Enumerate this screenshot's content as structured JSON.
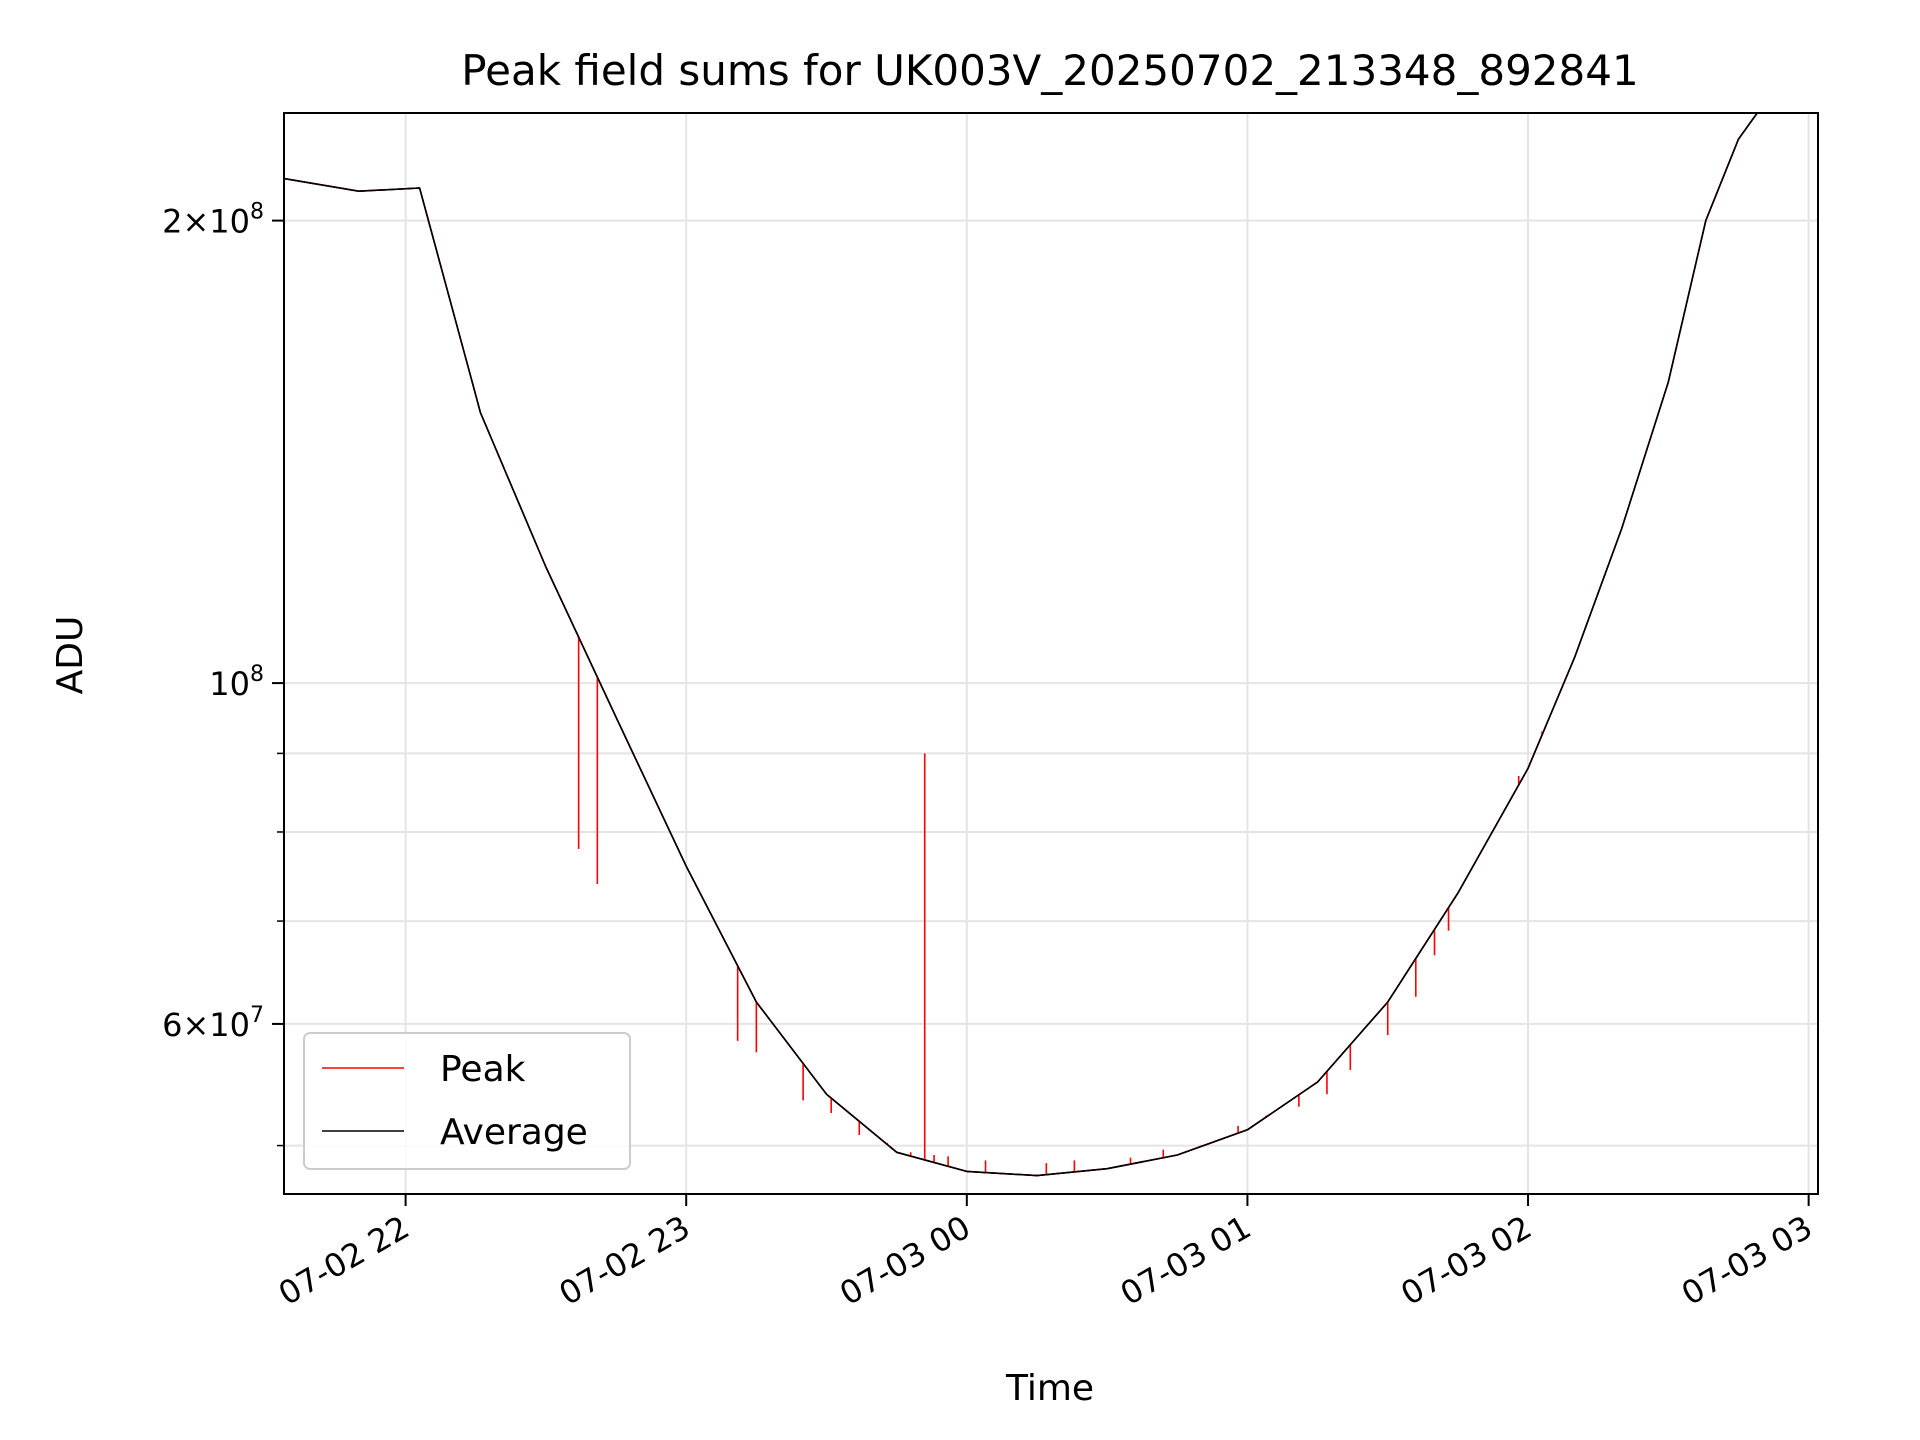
{
  "chart_data": {
    "type": "line",
    "title": "Peak field sums for UK003V_20250702_213348_892841",
    "xlabel": "Time",
    "ylabel": "ADU",
    "y_scale": "log",
    "ylim": [
      46500000,
      235000000
    ],
    "xlim": [
      "2025-07-02 21:34",
      "2025-07-03 03:02"
    ],
    "x_ticks": [
      {
        "time": "2025-07-02 22:00",
        "label": "07-02 22"
      },
      {
        "time": "2025-07-02 23:00",
        "label": "07-02 23"
      },
      {
        "time": "2025-07-03 00:00",
        "label": "07-03 00"
      },
      {
        "time": "2025-07-03 01:00",
        "label": "07-03 01"
      },
      {
        "time": "2025-07-03 02:00",
        "label": "07-03 02"
      },
      {
        "time": "2025-07-03 03:00",
        "label": "07-03 03"
      }
    ],
    "y_major_ticks": [
      {
        "value": 200000000,
        "mantissa": "2",
        "exponent": "8"
      },
      {
        "value": 100000000,
        "mantissa": "",
        "exponent": "8"
      },
      {
        "value": 60000000,
        "mantissa": "6",
        "exponent": "7"
      }
    ],
    "y_minor_ticks": [
      50000000,
      70000000,
      80000000,
      90000000
    ],
    "grid": true,
    "legend_position": "lower-left",
    "series": [
      {
        "name": "Peak",
        "color": "#ff0000",
        "x": [
          "2025-07-02 21:34",
          "2025-07-02 21:50",
          "2025-07-02 22:03",
          "2025-07-02 22:14",
          "2025-07-02 22:16",
          "2025-07-02 22:30",
          "2025-07-02 22:45",
          "2025-07-02 23:00",
          "2025-07-02 23:15",
          "2025-07-02 23:30",
          "2025-07-02 23:45",
          "2025-07-03 00:00",
          "2025-07-03 00:15",
          "2025-07-03 00:30",
          "2025-07-03 00:45",
          "2025-07-03 01:00",
          "2025-07-03 01:15",
          "2025-07-03 01:30",
          "2025-07-03 01:45",
          "2025-07-03 02:00",
          "2025-07-03 02:10",
          "2025-07-03 02:20",
          "2025-07-03 02:30",
          "2025-07-03 02:38",
          "2025-07-03 02:45",
          "2025-07-03 02:49"
        ],
        "y": [
          213000000,
          209000000,
          210000000,
          158000000,
          150000000,
          119000000,
          95000000,
          76000000,
          62000000,
          54000000,
          49500000,
          48100000,
          47800000,
          48300000,
          49300000,
          51200000,
          55000000,
          62000000,
          73000000,
          88000000,
          104000000,
          126000000,
          157000000,
          200000000,
          226000000,
          235000000
        ],
        "spikes": [
          {
            "x": "2025-07-02 22:37",
            "y": 78000000
          },
          {
            "x": "2025-07-02 22:41",
            "y": 74000000
          },
          {
            "x": "2025-07-02 23:11",
            "y": 58500000
          },
          {
            "x": "2025-07-02 23:15",
            "y": 57500000
          },
          {
            "x": "2025-07-02 23:25",
            "y": 53500000
          },
          {
            "x": "2025-07-02 23:31",
            "y": 52500000
          },
          {
            "x": "2025-07-02 23:37",
            "y": 50800000
          },
          {
            "x": "2025-07-02 23:43",
            "y": 50200000
          },
          {
            "x": "2025-07-02 23:48",
            "y": 49500000
          },
          {
            "x": "2025-07-02 23:51",
            "y": 90000000
          },
          {
            "x": "2025-07-02 23:53",
            "y": 49300000
          },
          {
            "x": "2025-07-02 23:56",
            "y": 49200000
          },
          {
            "x": "2025-07-03 00:04",
            "y": 48900000
          },
          {
            "x": "2025-07-03 00:17",
            "y": 48700000
          },
          {
            "x": "2025-07-03 00:23",
            "y": 48900000
          },
          {
            "x": "2025-07-03 00:35",
            "y": 49100000
          },
          {
            "x": "2025-07-03 00:42",
            "y": 49700000
          },
          {
            "x": "2025-07-03 00:50",
            "y": 50000000
          },
          {
            "x": "2025-07-03 00:58",
            "y": 51500000
          },
          {
            "x": "2025-07-03 01:04",
            "y": 52300000
          },
          {
            "x": "2025-07-03 01:11",
            "y": 53000000
          },
          {
            "x": "2025-07-03 01:17",
            "y": 54000000
          },
          {
            "x": "2025-07-03 01:22",
            "y": 56000000
          },
          {
            "x": "2025-07-03 01:30",
            "y": 59000000
          },
          {
            "x": "2025-07-03 01:36",
            "y": 62500000
          },
          {
            "x": "2025-07-03 01:40",
            "y": 66500000
          },
          {
            "x": "2025-07-03 01:43",
            "y": 69000000
          },
          {
            "x": "2025-07-03 01:58",
            "y": 87000000
          },
          {
            "x": "2025-07-03 02:03",
            "y": 93000000
          }
        ]
      },
      {
        "name": "Average",
        "color": "#000000",
        "x": [
          "2025-07-02 21:34",
          "2025-07-02 21:50",
          "2025-07-02 22:03",
          "2025-07-02 22:14",
          "2025-07-02 22:16",
          "2025-07-02 22:30",
          "2025-07-02 22:45",
          "2025-07-02 23:00",
          "2025-07-02 23:15",
          "2025-07-02 23:30",
          "2025-07-02 23:45",
          "2025-07-03 00:00",
          "2025-07-03 00:15",
          "2025-07-03 00:30",
          "2025-07-03 00:45",
          "2025-07-03 01:00",
          "2025-07-03 01:15",
          "2025-07-03 01:30",
          "2025-07-03 01:45",
          "2025-07-03 02:00",
          "2025-07-03 02:10",
          "2025-07-03 02:20",
          "2025-07-03 02:30",
          "2025-07-03 02:38",
          "2025-07-03 02:45",
          "2025-07-03 02:49"
        ],
        "y": [
          213000000,
          209000000,
          210000000,
          158000000,
          150000000,
          119000000,
          95000000,
          76000000,
          62000000,
          54000000,
          49500000,
          48100000,
          47800000,
          48300000,
          49300000,
          51200000,
          55000000,
          62000000,
          73000000,
          88000000,
          104000000,
          126000000,
          157000000,
          200000000,
          226000000,
          235000000
        ]
      }
    ]
  }
}
